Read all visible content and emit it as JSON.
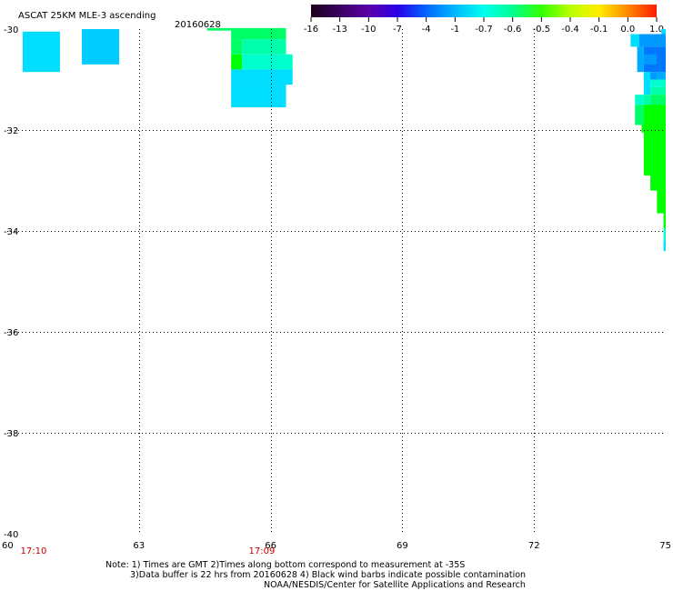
{
  "header": {
    "title": "ASCAT 25KM MLE-3 ascending",
    "date": "20160628"
  },
  "colorbar": {
    "labels": [
      "-16",
      "-13",
      "-10",
      "-7",
      "-4",
      "-1",
      "-0.7",
      "-0.6",
      "-0.5",
      "-0.4",
      "-0.1",
      "0.0",
      "1.0"
    ],
    "colors": [
      "#1a0018",
      "#3a0060",
      "#5a00a8",
      "#2a00e8",
      "#0066ff",
      "#00b8ff",
      "#00ffee",
      "#00ff90",
      "#33ff00",
      "#b8ff00",
      "#ffee00",
      "#ff8800",
      "#ff1a00"
    ]
  },
  "chart_data": {
    "type": "heatmap",
    "title": "ASCAT 25KM MLE-3 ascending",
    "xlim": [
      60,
      75
    ],
    "ylim": [
      -40,
      -30
    ],
    "x_ticks": [
      "60",
      "63",
      "66",
      "69",
      "72",
      "75"
    ],
    "y_ticks": [
      "-30",
      "-32",
      "-34",
      "-36",
      "-38",
      "-40"
    ],
    "time_labels": [
      {
        "x": 60.6,
        "label": "17:10"
      },
      {
        "x": 65.8,
        "label": "17:09"
      }
    ],
    "color_key": {
      "cyan": "#00ddff",
      "light_blue": "#00ccff",
      "green": "#00ff66",
      "bright_green": "#00ff00",
      "mint": "#00ffaa",
      "aqua": "#00ffcc",
      "blue1": "#0099ff",
      "blue2": "#0077ff",
      "blue3": "#00aaff"
    },
    "cells": [
      {
        "x0": 60.35,
        "x1": 61.2,
        "y0": -30.05,
        "y1": -30.85,
        "c": "cyan"
      },
      {
        "x0": 61.7,
        "x1": 62.55,
        "y0": -30.0,
        "y1": -30.7,
        "c": "light_blue"
      },
      {
        "x0": 64.55,
        "x1": 65.1,
        "y0": -29.98,
        "y1": -30.03,
        "c": "green"
      },
      {
        "x0": 65.1,
        "x1": 66.35,
        "y0": -29.98,
        "y1": -30.2,
        "c": "green"
      },
      {
        "x0": 65.1,
        "x1": 65.35,
        "y0": -30.2,
        "y1": -30.5,
        "c": "green"
      },
      {
        "x0": 65.35,
        "x1": 66.35,
        "y0": -30.2,
        "y1": -30.5,
        "c": "mint"
      },
      {
        "x0": 65.1,
        "x1": 65.35,
        "y0": -30.5,
        "y1": -30.8,
        "c": "bright_green"
      },
      {
        "x0": 65.35,
        "x1": 66.5,
        "y0": -30.5,
        "y1": -30.8,
        "c": "aqua"
      },
      {
        "x0": 65.1,
        "x1": 66.5,
        "y0": -30.8,
        "y1": -31.1,
        "c": "cyan"
      },
      {
        "x0": 65.1,
        "x1": 66.35,
        "y0": -31.1,
        "y1": -31.55,
        "c": "cyan"
      },
      {
        "x0": 74.9,
        "x1": 75,
        "y0": -30.0,
        "y1": -30.1,
        "c": "cyan"
      },
      {
        "x0": 74.5,
        "x1": 75,
        "y0": -30.1,
        "y1": -30.25,
        "c": "cyan"
      },
      {
        "x0": 74.2,
        "x1": 74.4,
        "y0": -30.1,
        "y1": -30.35,
        "c": "cyan"
      },
      {
        "x0": 74.4,
        "x1": 75,
        "y0": -30.1,
        "y1": -30.35,
        "c": "blue1"
      },
      {
        "x0": 74.35,
        "x1": 74.5,
        "y0": -30.35,
        "y1": -30.85,
        "c": "blue3"
      },
      {
        "x0": 74.5,
        "x1": 75,
        "y0": -30.35,
        "y1": -30.85,
        "c": "blue2"
      },
      {
        "x0": 74.5,
        "x1": 75,
        "y0": -30.85,
        "y1": -31.0,
        "c": "blue1"
      },
      {
        "x0": 74.5,
        "x1": 74.8,
        "y0": -30.5,
        "y1": -30.7,
        "c": "blue1"
      },
      {
        "x0": 74.5,
        "x1": 74.65,
        "y0": -30.85,
        "y1": -31.3,
        "c": "cyan"
      },
      {
        "x0": 74.65,
        "x1": 75,
        "y0": -31.0,
        "y1": -31.15,
        "c": "aqua"
      },
      {
        "x0": 74.65,
        "x1": 75,
        "y0": -31.15,
        "y1": -31.3,
        "c": "mint"
      },
      {
        "x0": 74.8,
        "x1": 75,
        "y0": -30.85,
        "y1": -31.0,
        "c": "blue3"
      },
      {
        "x0": 74.65,
        "x1": 75,
        "y0": -31.3,
        "y1": -31.8,
        "c": "green"
      },
      {
        "x0": 74.8,
        "x1": 75,
        "y0": -31.8,
        "y1": -32.05,
        "c": "green"
      },
      {
        "x0": 74.95,
        "x1": 75,
        "y0": -32.05,
        "y1": -32.2,
        "c": "green"
      },
      {
        "x0": 74.3,
        "x1": 74.5,
        "y0": -31.3,
        "y1": -31.5,
        "c": "aqua"
      },
      {
        "x0": 74.5,
        "x1": 74.65,
        "y0": -31.3,
        "y1": -31.5,
        "c": "mint"
      },
      {
        "x0": 74.3,
        "x1": 74.5,
        "y0": -31.5,
        "y1": -31.9,
        "c": "green"
      },
      {
        "x0": 74.5,
        "x1": 75,
        "y0": -31.5,
        "y1": -32.05,
        "c": "bright_green"
      },
      {
        "x0": 74.45,
        "x1": 75,
        "y0": -31.9,
        "y1": -32.05,
        "c": "bright_green"
      },
      {
        "x0": 74.5,
        "x1": 75,
        "y0": -32.05,
        "y1": -32.9,
        "c": "bright_green"
      },
      {
        "x0": 74.65,
        "x1": 75,
        "y0": -32.9,
        "y1": -33.2,
        "c": "bright_green"
      },
      {
        "x0": 74.8,
        "x1": 75,
        "y0": -33.2,
        "y1": -33.65,
        "c": "bright_green"
      },
      {
        "x0": 74.95,
        "x1": 75,
        "y0": -33.65,
        "y1": -33.95,
        "c": "bright_green"
      },
      {
        "x0": 74.95,
        "x1": 75,
        "y0": -33.95,
        "y1": -34.2,
        "c": "aqua"
      },
      {
        "x0": 74.95,
        "x1": 75,
        "y0": -34.2,
        "y1": -34.4,
        "c": "cyan"
      }
    ]
  },
  "notes": {
    "line1": "Note: 1) Times are GMT 2)Times along bottom correspond to measurement at -35S",
    "line2": "3)Data buffer is 22 hrs from 20160628 4) Black wind barbs indicate possible contamination",
    "line3": "NOAA/NESDIS/Center for Satellite Applications and Research"
  }
}
